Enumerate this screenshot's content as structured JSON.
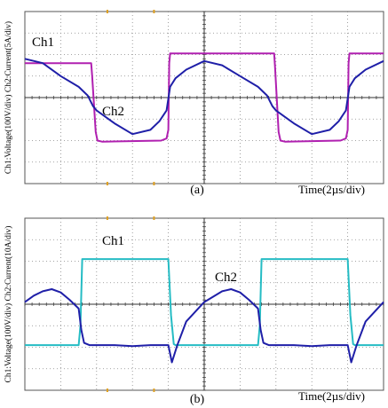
{
  "colors": {
    "grid": "#888888",
    "frame": "#555555",
    "voltage_a": "#b020b0",
    "current": "#1f1fa8",
    "voltage_b": "#25bcc4",
    "marker": "#e0a020"
  },
  "chart_data": [
    {
      "type": "line",
      "caption": "(a)",
      "ylabel": "Ch1:Voltage(100V/div) Ch2:Current(5A/div)",
      "xlabel": "Time(2µs/div)",
      "xlim": [
        0,
        20
      ],
      "ylim": [
        -4,
        4
      ],
      "grid": true,
      "grid_divisions": {
        "x": 10,
        "y": 8
      },
      "series": [
        {
          "name": "Ch1",
          "color_key": "voltage_a",
          "x": [
            0,
            3.7,
            3.75,
            3.95,
            4.05,
            4.3,
            7.6,
            7.9,
            8.0,
            8.05,
            8.1,
            13.9,
            13.95,
            14.15,
            14.25,
            14.5,
            17.6,
            17.9,
            18.0,
            18.05,
            18.1,
            20
          ],
          "y": [
            1.6,
            1.6,
            1.0,
            -1.6,
            -2.0,
            -2.05,
            -2.0,
            -1.9,
            -1.5,
            1.6,
            2.05,
            2.05,
            1.4,
            -1.6,
            -2.0,
            -2.05,
            -2.0,
            -1.9,
            -1.5,
            1.6,
            2.05,
            2.05
          ]
        },
        {
          "name": "Ch2",
          "color_key": "current",
          "x": [
            0,
            1,
            2,
            3,
            3.5,
            3.8,
            4,
            4.5,
            5,
            6,
            7,
            7.5,
            7.9,
            8.1,
            8.4,
            9,
            10,
            11,
            12,
            13,
            13.5,
            13.8,
            14,
            14.5,
            15,
            16,
            17,
            17.5,
            17.9,
            18.1,
            18.4,
            19,
            20
          ],
          "y": [
            1.8,
            1.6,
            1.0,
            0.5,
            0.1,
            -0.4,
            -0.6,
            -0.9,
            -1.2,
            -1.7,
            -1.5,
            -1.1,
            -0.6,
            0.5,
            0.9,
            1.3,
            1.7,
            1.5,
            1.0,
            0.5,
            0.1,
            -0.4,
            -0.6,
            -0.9,
            -1.2,
            -1.7,
            -1.5,
            -1.1,
            -0.6,
            0.5,
            0.9,
            1.3,
            1.7
          ]
        }
      ]
    },
    {
      "type": "line",
      "caption": "(b)",
      "ylabel": "Ch1:Voltage(100V/div) Ch2:Current(10A/div)",
      "xlabel": "Time(2µs/div)",
      "xlim": [
        0,
        20
      ],
      "ylim": [
        -4,
        4
      ],
      "grid": true,
      "grid_divisions": {
        "x": 10,
        "y": 8
      },
      "series": [
        {
          "name": "Ch1",
          "color_key": "voltage_b",
          "x": [
            0,
            3.0,
            3.1,
            3.2,
            3.3,
            8.0,
            8.15,
            8.3,
            8.4,
            13.0,
            13.1,
            13.2,
            13.3,
            18.0,
            18.15,
            18.3,
            18.4,
            20
          ],
          "y": [
            -1.9,
            -1.9,
            -1.0,
            2.1,
            2.1,
            2.1,
            -0.5,
            -1.85,
            -1.9,
            -1.9,
            -1.0,
            2.1,
            2.1,
            2.1,
            -0.5,
            -1.85,
            -1.9,
            -1.9
          ]
        },
        {
          "name": "Ch2",
          "color_key": "current",
          "x": [
            0,
            0.5,
            1,
            1.5,
            2,
            2.5,
            3.0,
            3.15,
            3.3,
            3.6,
            4,
            5,
            6,
            7,
            7.8,
            8.0,
            8.2,
            8.5,
            9,
            10,
            11,
            11.5,
            12,
            12.5,
            13.0,
            13.15,
            13.3,
            13.6,
            14,
            15,
            16,
            17,
            17.8,
            18.0,
            18.2,
            18.5,
            19,
            20
          ],
          "y": [
            0.1,
            0.4,
            0.6,
            0.7,
            0.55,
            0.2,
            -0.2,
            -1.2,
            -1.8,
            -1.9,
            -1.9,
            -1.9,
            -1.95,
            -1.9,
            -1.9,
            -1.9,
            -2.7,
            -1.9,
            -0.8,
            0.1,
            0.6,
            0.7,
            0.55,
            0.2,
            -0.2,
            -1.2,
            -1.8,
            -1.9,
            -1.9,
            -1.9,
            -1.95,
            -1.9,
            -1.9,
            -1.9,
            -2.7,
            -1.9,
            -0.8,
            0.1
          ]
        }
      ]
    }
  ]
}
